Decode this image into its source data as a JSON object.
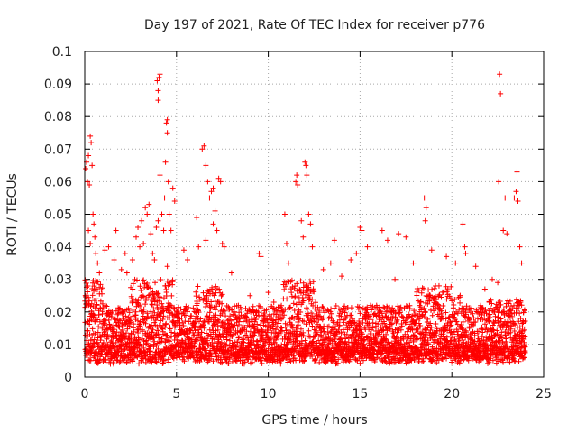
{
  "chart_data": {
    "type": "scatter",
    "title": "Day 197 of 2021, Rate Of TEC Index for receiver p776",
    "xlabel": "GPS time / hours",
    "ylabel": "ROTI / TECUs",
    "xlim": [
      0,
      25
    ],
    "ylim": [
      0,
      0.1
    ],
    "xticks": [
      0,
      5,
      10,
      15,
      20,
      25
    ],
    "yticks": [
      0,
      0.01,
      0.02,
      0.03,
      0.04,
      0.05,
      0.06,
      0.07,
      0.08,
      0.09,
      0.1
    ],
    "xtick_labels": [
      "0",
      "5",
      "10",
      "15",
      "20",
      "25"
    ],
    "ytick_labels": [
      "0",
      "0.01",
      "0.02",
      "0.03",
      "0.04",
      "0.05",
      "0.06",
      "0.07",
      "0.08",
      "0.09",
      "0.1"
    ],
    "grid": true,
    "marker": "+",
    "color": "#ff0000",
    "series": [
      {
        "points": [
          [
            0.05,
            0.064
          ],
          [
            0.1,
            0.066
          ],
          [
            0.15,
            0.06
          ],
          [
            0.2,
            0.068
          ],
          [
            0.25,
            0.059
          ],
          [
            0.3,
            0.074
          ],
          [
            0.35,
            0.072
          ],
          [
            0.4,
            0.065
          ],
          [
            0.45,
            0.05
          ],
          [
            0.5,
            0.047
          ],
          [
            0.55,
            0.043
          ],
          [
            0.6,
            0.038
          ],
          [
            0.7,
            0.035
          ],
          [
            0.8,
            0.032
          ],
          [
            0.2,
            0.045
          ],
          [
            0.3,
            0.041
          ],
          [
            1.1,
            0.039
          ],
          [
            1.3,
            0.04
          ],
          [
            1.6,
            0.036
          ],
          [
            1.7,
            0.045
          ],
          [
            2.0,
            0.033
          ],
          [
            2.2,
            0.038
          ],
          [
            2.3,
            0.032
          ],
          [
            2.6,
            0.036
          ],
          [
            2.8,
            0.043
          ],
          [
            2.9,
            0.046
          ],
          [
            3.0,
            0.04
          ],
          [
            3.1,
            0.048
          ],
          [
            3.2,
            0.041
          ],
          [
            3.3,
            0.052
          ],
          [
            3.4,
            0.05
          ],
          [
            3.5,
            0.053
          ],
          [
            3.6,
            0.044
          ],
          [
            3.7,
            0.038
          ],
          [
            3.8,
            0.036
          ],
          [
            3.95,
            0.091
          ],
          [
            4.0,
            0.088
          ],
          [
            4.05,
            0.092
          ],
          [
            4.1,
            0.093
          ],
          [
            4.0,
            0.085
          ],
          [
            4.1,
            0.062
          ],
          [
            4.0,
            0.048
          ],
          [
            3.9,
            0.046
          ],
          [
            4.2,
            0.05
          ],
          [
            4.3,
            0.045
          ],
          [
            4.35,
            0.055
          ],
          [
            4.4,
            0.066
          ],
          [
            4.45,
            0.078
          ],
          [
            4.5,
            0.079
          ],
          [
            4.5,
            0.075
          ],
          [
            4.55,
            0.06
          ],
          [
            4.6,
            0.05
          ],
          [
            4.7,
            0.045
          ],
          [
            4.8,
            0.058
          ],
          [
            4.9,
            0.054
          ],
          [
            4.5,
            0.034
          ],
          [
            4.6,
            0.029
          ],
          [
            5.4,
            0.039
          ],
          [
            5.6,
            0.036
          ],
          [
            6.1,
            0.049
          ],
          [
            6.2,
            0.04
          ],
          [
            6.4,
            0.07
          ],
          [
            6.5,
            0.071
          ],
          [
            6.6,
            0.065
          ],
          [
            6.7,
            0.06
          ],
          [
            6.8,
            0.055
          ],
          [
            6.9,
            0.057
          ],
          [
            7.0,
            0.058
          ],
          [
            7.1,
            0.051
          ],
          [
            7.2,
            0.045
          ],
          [
            7.3,
            0.061
          ],
          [
            7.4,
            0.06
          ],
          [
            7.5,
            0.041
          ],
          [
            7.6,
            0.04
          ],
          [
            7.0,
            0.047
          ],
          [
            6.6,
            0.042
          ],
          [
            8.0,
            0.032
          ],
          [
            9.0,
            0.025
          ],
          [
            9.5,
            0.038
          ],
          [
            9.6,
            0.037
          ],
          [
            10.0,
            0.026
          ],
          [
            10.3,
            0.023
          ],
          [
            10.9,
            0.05
          ],
          [
            11.0,
            0.041
          ],
          [
            11.1,
            0.035
          ],
          [
            11.5,
            0.06
          ],
          [
            11.6,
            0.059
          ],
          [
            11.55,
            0.062
          ],
          [
            12.0,
            0.066
          ],
          [
            12.05,
            0.065
          ],
          [
            12.1,
            0.062
          ],
          [
            11.8,
            0.048
          ],
          [
            12.2,
            0.05
          ],
          [
            12.3,
            0.047
          ],
          [
            11.9,
            0.043
          ],
          [
            12.4,
            0.04
          ],
          [
            13.0,
            0.033
          ],
          [
            13.4,
            0.035
          ],
          [
            13.6,
            0.042
          ],
          [
            14.0,
            0.031
          ],
          [
            14.5,
            0.036
          ],
          [
            14.8,
            0.038
          ],
          [
            15.0,
            0.046
          ],
          [
            15.1,
            0.045
          ],
          [
            15.4,
            0.04
          ],
          [
            16.2,
            0.045
          ],
          [
            16.5,
            0.042
          ],
          [
            16.9,
            0.03
          ],
          [
            17.1,
            0.044
          ],
          [
            17.5,
            0.043
          ],
          [
            17.9,
            0.035
          ],
          [
            18.5,
            0.055
          ],
          [
            18.6,
            0.052
          ],
          [
            18.55,
            0.048
          ],
          [
            18.9,
            0.039
          ],
          [
            19.3,
            0.028
          ],
          [
            19.7,
            0.037
          ],
          [
            20.2,
            0.035
          ],
          [
            20.6,
            0.047
          ],
          [
            20.7,
            0.04
          ],
          [
            20.75,
            0.038
          ],
          [
            21.3,
            0.034
          ],
          [
            21.8,
            0.027
          ],
          [
            22.2,
            0.03
          ],
          [
            22.5,
            0.029
          ],
          [
            22.55,
            0.06
          ],
          [
            22.6,
            0.093
          ],
          [
            22.65,
            0.087
          ],
          [
            22.8,
            0.045
          ],
          [
            22.9,
            0.055
          ],
          [
            23.0,
            0.044
          ],
          [
            23.4,
            0.055
          ],
          [
            23.5,
            0.057
          ],
          [
            23.6,
            0.054
          ],
          [
            23.55,
            0.063
          ],
          [
            23.7,
            0.04
          ],
          [
            23.8,
            0.035
          ]
        ],
        "band_points": "generated"
      }
    ]
  }
}
